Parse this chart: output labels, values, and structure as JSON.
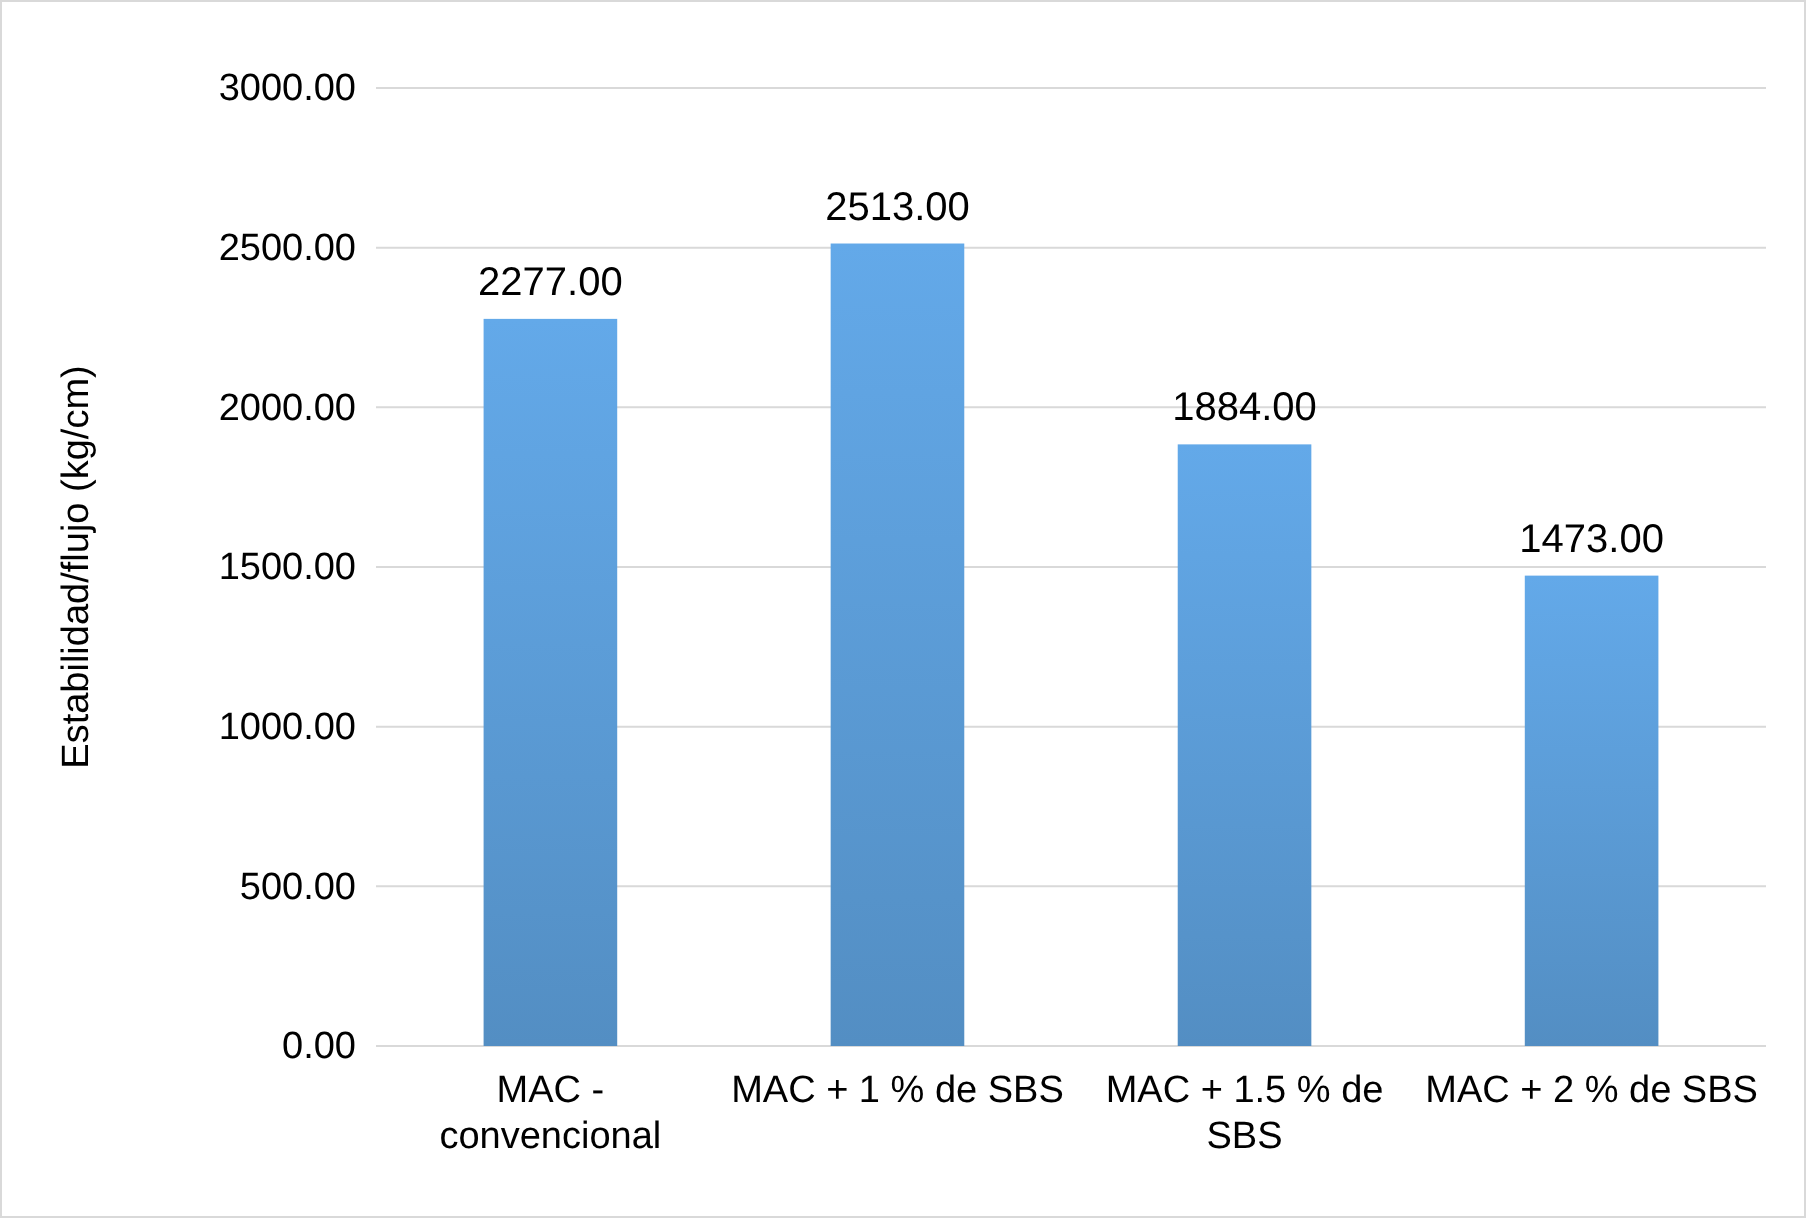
{
  "chart_data": {
    "type": "bar",
    "ylabel": "Estabilidad/flujo (kg/cm)",
    "categories": [
      "MAC - convencional",
      "MAC + 1 % de SBS",
      "MAC + 1.5 % de SBS",
      "MAC + 2 % de SBS"
    ],
    "values": [
      2277,
      2513,
      1884,
      1473
    ],
    "color": "#5b9bd5",
    "ylim": [
      0,
      3000
    ],
    "yticks": [
      {
        "value": 0,
        "label": "0.00"
      },
      {
        "value": 500,
        "label": "500.00"
      },
      {
        "value": 1000,
        "label": "1000.00"
      },
      {
        "value": 1500,
        "label": "1500.00"
      },
      {
        "value": 2000,
        "label": "2000.00"
      },
      {
        "value": 2500,
        "label": "2500.00"
      },
      {
        "value": 3000,
        "label": "3000.00"
      }
    ],
    "grid": "y",
    "value_labels": [
      "2277.00",
      "2513.00",
      "1884.00",
      "1473.00"
    ]
  }
}
